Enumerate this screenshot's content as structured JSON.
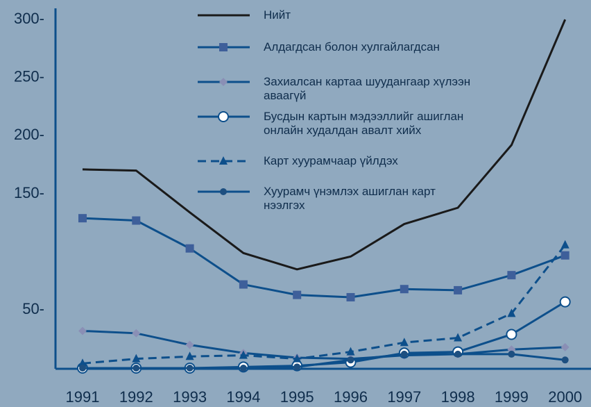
{
  "chart_data": {
    "type": "line",
    "categories": [
      "1991",
      "1992",
      "1993",
      "1994",
      "1995",
      "1996",
      "1997",
      "1998",
      "1999",
      "2000"
    ],
    "ylim": [
      0,
      310
    ],
    "yticks": [
      {
        "value": 50,
        "label": "50-"
      },
      {
        "value": 150,
        "label": "150-"
      },
      {
        "value": 200,
        "label": "200-"
      },
      {
        "value": 250,
        "label": "250-"
      },
      {
        "value": 300,
        "label": "300-"
      }
    ],
    "series": [
      {
        "name": "Нийт",
        "color": "#1a1a1a",
        "marker": "none",
        "dash": false,
        "values": [
          171,
          170,
          134,
          99,
          85,
          96,
          124,
          138,
          192,
          300
        ]
      },
      {
        "name": "Алдагдсан болон хулгайлагдсан",
        "color": "#0d4f8b",
        "marker": "square",
        "dash": false,
        "values": [
          129,
          127,
          103,
          72,
          63,
          61,
          68,
          67,
          80,
          97
        ]
      },
      {
        "name": "Захиалсан картаа шуудангаар хүлээн аваагүй",
        "color": "#0d4f8b",
        "marker": "diamond",
        "dash": false,
        "values": [
          32,
          30,
          20,
          13,
          9,
          8,
          11,
          12,
          16,
          18
        ]
      },
      {
        "name": "Бусдын картын мэдээллийг ашиглан онлайн худалдан авалт хийх",
        "color": "#0d4f8b",
        "marker": "circle",
        "dash": false,
        "values": [
          0,
          0,
          0,
          1,
          2,
          5,
          13,
          14,
          29,
          57
        ]
      },
      {
        "name": "Карт хуурамчаар үйлдэх",
        "color": "#0d4f8b",
        "marker": "triangle",
        "dash": true,
        "values": [
          4,
          8,
          10,
          11,
          8,
          14,
          22,
          26,
          47,
          106
        ]
      },
      {
        "name": "Хуурамч үнэмлэх ашиглан карт нээлгэх",
        "color": "#0d4f8b",
        "marker": "dot",
        "dash": false,
        "values": [
          0,
          0,
          0,
          0,
          1,
          7,
          12,
          12,
          12,
          7
        ]
      }
    ]
  }
}
